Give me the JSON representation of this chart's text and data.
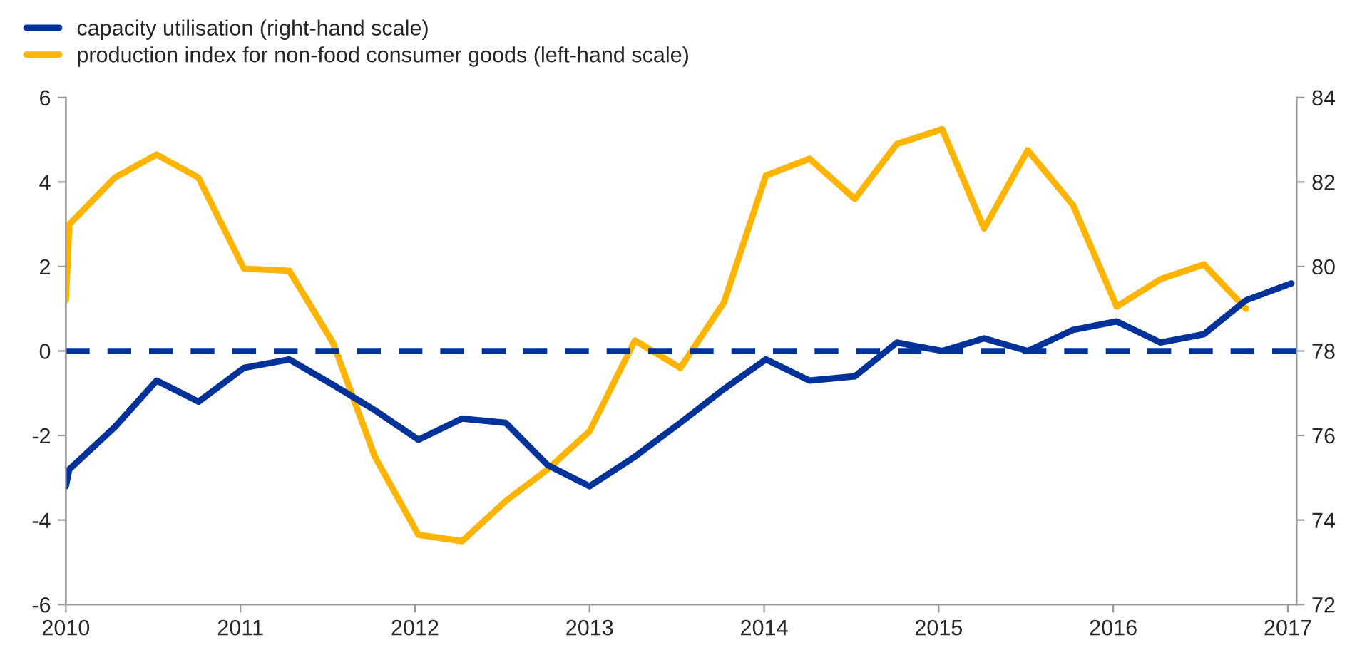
{
  "chart_data": {
    "type": "line",
    "legend": "top left",
    "grid": false,
    "line_style": "solid",
    "marker": "none",
    "xlim": [
      2010,
      2017.05
    ],
    "xticks": [
      {
        "value": 2010,
        "label": "2010"
      },
      {
        "value": 2011,
        "label": "2011"
      },
      {
        "value": 2012,
        "label": "2012"
      },
      {
        "value": 2013,
        "label": "2013"
      },
      {
        "value": 2014,
        "label": "2014"
      },
      {
        "value": 2015,
        "label": "2015"
      },
      {
        "value": 2016,
        "label": "2016"
      },
      {
        "value": 2017,
        "label": "2017"
      }
    ],
    "ylim": [
      -6,
      6
    ],
    "yticks": [
      -6,
      -4,
      -2,
      0,
      2,
      4,
      6
    ],
    "y2lim": [
      72,
      84
    ],
    "y2ticks": [
      72,
      74,
      76,
      78,
      80,
      82,
      84
    ],
    "series": [
      {
        "name": "capacity utilisation (right-hand scale)",
        "color": "#003299",
        "axis": "y2",
        "x": [
          2010.0,
          2010.02,
          2010.28,
          2010.52,
          2010.76,
          2011.02,
          2011.28,
          2011.53,
          2011.77,
          2012.02,
          2012.27,
          2012.52,
          2012.76,
          2013.0,
          2013.26,
          2013.52,
          2013.77,
          2014.01,
          2014.26,
          2014.52,
          2014.76,
          2015.02,
          2015.26,
          2015.51,
          2015.77,
          2016.02,
          2016.27,
          2016.52,
          2016.76,
          2017.02
        ],
        "values": [
          74.8,
          75.2,
          76.2,
          77.3,
          76.8,
          77.6,
          77.8,
          77.2,
          76.6,
          75.9,
          76.4,
          76.3,
          75.3,
          74.8,
          75.5,
          76.3,
          77.1,
          77.8,
          77.3,
          77.4,
          78.2,
          78.0,
          78.3,
          78.0,
          78.5,
          78.7,
          78.2,
          78.4,
          79.2,
          79.6
        ]
      },
      {
        "name": "production index for non-food consumer goods (left-hand scale)",
        "color": "#ffb400",
        "x": [
          2010.0,
          2010.02,
          2010.28,
          2010.52,
          2010.76,
          2011.02,
          2011.28,
          2011.53,
          2011.77,
          2012.02,
          2012.27,
          2012.52,
          2012.76,
          2013.0,
          2013.26,
          2013.52,
          2013.77,
          2014.01,
          2014.26,
          2014.52,
          2014.76,
          2015.02,
          2015.26,
          2015.51,
          2015.77,
          2016.02,
          2016.27,
          2016.52,
          2016.76
        ],
        "values": [
          1.2,
          3.0,
          4.1,
          4.65,
          4.1,
          1.95,
          1.9,
          0.2,
          -2.5,
          -4.35,
          -4.5,
          -3.55,
          -2.8,
          -1.9,
          0.25,
          -0.4,
          1.15,
          4.15,
          4.55,
          3.6,
          4.9,
          5.25,
          2.9,
          4.75,
          3.45,
          1.05,
          1.7,
          2.05,
          1.0
        ]
      }
    ],
    "ref_lines": [
      {
        "axis": "y2",
        "value": 78,
        "color": "#003299",
        "line_style": "dashed"
      }
    ]
  }
}
